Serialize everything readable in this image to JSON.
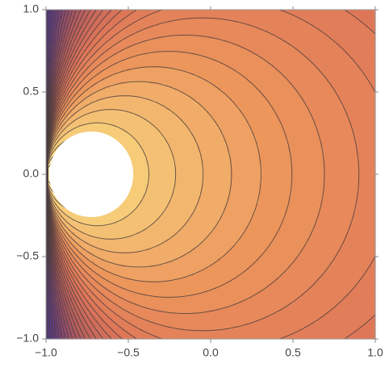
{
  "chart_data": {
    "type": "contour",
    "xlim": [
      -1,
      1
    ],
    "ylim": [
      -1,
      1
    ],
    "xticks": [
      {
        "value": -1,
        "label": "−1.0"
      },
      {
        "value": -0.5,
        "label": "−0.5"
      },
      {
        "value": 0,
        "label": "0.0"
      },
      0.5,
      {
        "value": 1,
        "label": "1.0"
      }
    ],
    "yticks": [
      {
        "value": -1,
        "label": "−1.0"
      },
      {
        "value": -0.5,
        "label": "−0.5"
      },
      {
        "value": 0,
        "label": "0.0"
      },
      0.5,
      {
        "value": 1,
        "label": "1.0"
      }
    ]
  }
}
